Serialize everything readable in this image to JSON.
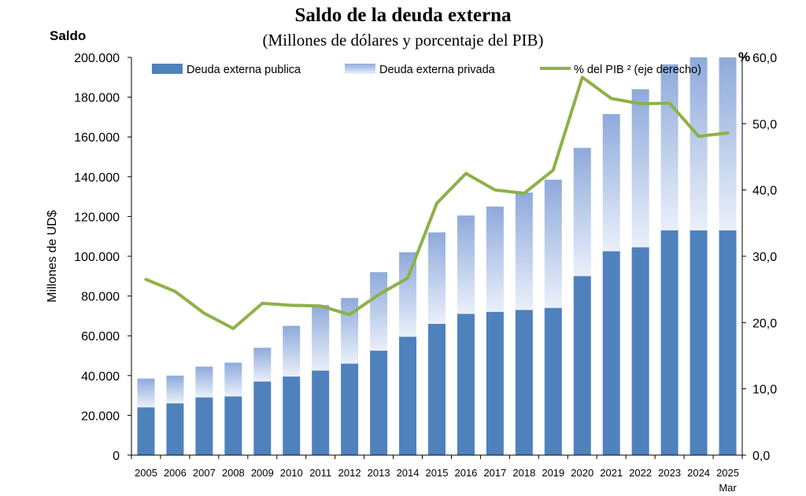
{
  "chart_data": {
    "type": "bar",
    "title": "Saldo de la deuda externa",
    "subtitle": "(Millones  de dólares y porcentaje del PIB)",
    "left_axis_title": "Saldo",
    "ylabel": "Millones de UD$",
    "right_axis_title": "%",
    "categories": [
      "2005",
      "2006",
      "2007",
      "2008",
      "2009",
      "2010",
      "2011",
      "2012",
      "2013",
      "2014",
      "2015",
      "2016",
      "2017",
      "2018",
      "2019",
      "2020",
      "2021",
      "2022",
      "2023",
      "2024",
      "2025"
    ],
    "last_category_sublabel": "Mar",
    "ylim": [
      0,
      200000
    ],
    "y_ticks": [
      0,
      20000,
      40000,
      60000,
      80000,
      100000,
      120000,
      140000,
      160000,
      180000,
      200000
    ],
    "y_tick_labels": [
      "0",
      "20.000",
      "40.000",
      "60.000",
      "80.000",
      "100.000",
      "120.000",
      "140.000",
      "160.000",
      "180.000",
      "200.000"
    ],
    "y2lim": [
      0,
      60
    ],
    "y2_ticks": [
      0,
      10,
      20,
      30,
      40,
      50,
      60
    ],
    "y2_tick_labels": [
      "0,0",
      "10,0",
      "20,0",
      "30,0",
      "40,0",
      "50,0",
      "60,0"
    ],
    "stacked": true,
    "series": [
      {
        "name": "Deuda externa publica",
        "kind": "bar",
        "color": "#4f81bd",
        "values": [
          24000,
          26000,
          29000,
          29500,
          37000,
          39500,
          42500,
          46000,
          52500,
          59500,
          66000,
          71000,
          72000,
          73000,
          74000,
          90000,
          102500,
          104500,
          113000,
          113000,
          113000
        ]
      },
      {
        "name": "Deuda externa privada",
        "kind": "bar",
        "color_top": "#8eaadb",
        "color_bottom": "#eaf0fa",
        "values": [
          14500,
          14000,
          15500,
          17000,
          17000,
          25500,
          33000,
          33000,
          39500,
          42500,
          46000,
          49500,
          53000,
          59000,
          64500,
          64500,
          69000,
          79500,
          83500,
          87000,
          87000
        ]
      },
      {
        "name": "% del PIB ² (eje derecho)",
        "kind": "line",
        "axis": "right",
        "color": "#8db147",
        "values": [
          26.5,
          24.7,
          21.4,
          19.1,
          22.9,
          22.6,
          22.5,
          21.2,
          24.2,
          26.7,
          38.0,
          42.5,
          40.0,
          39.5,
          43.0,
          57.0,
          53.8,
          53.0,
          53.1,
          48.1,
          48.6
        ]
      }
    ],
    "legend_position": "top",
    "grid": false
  }
}
